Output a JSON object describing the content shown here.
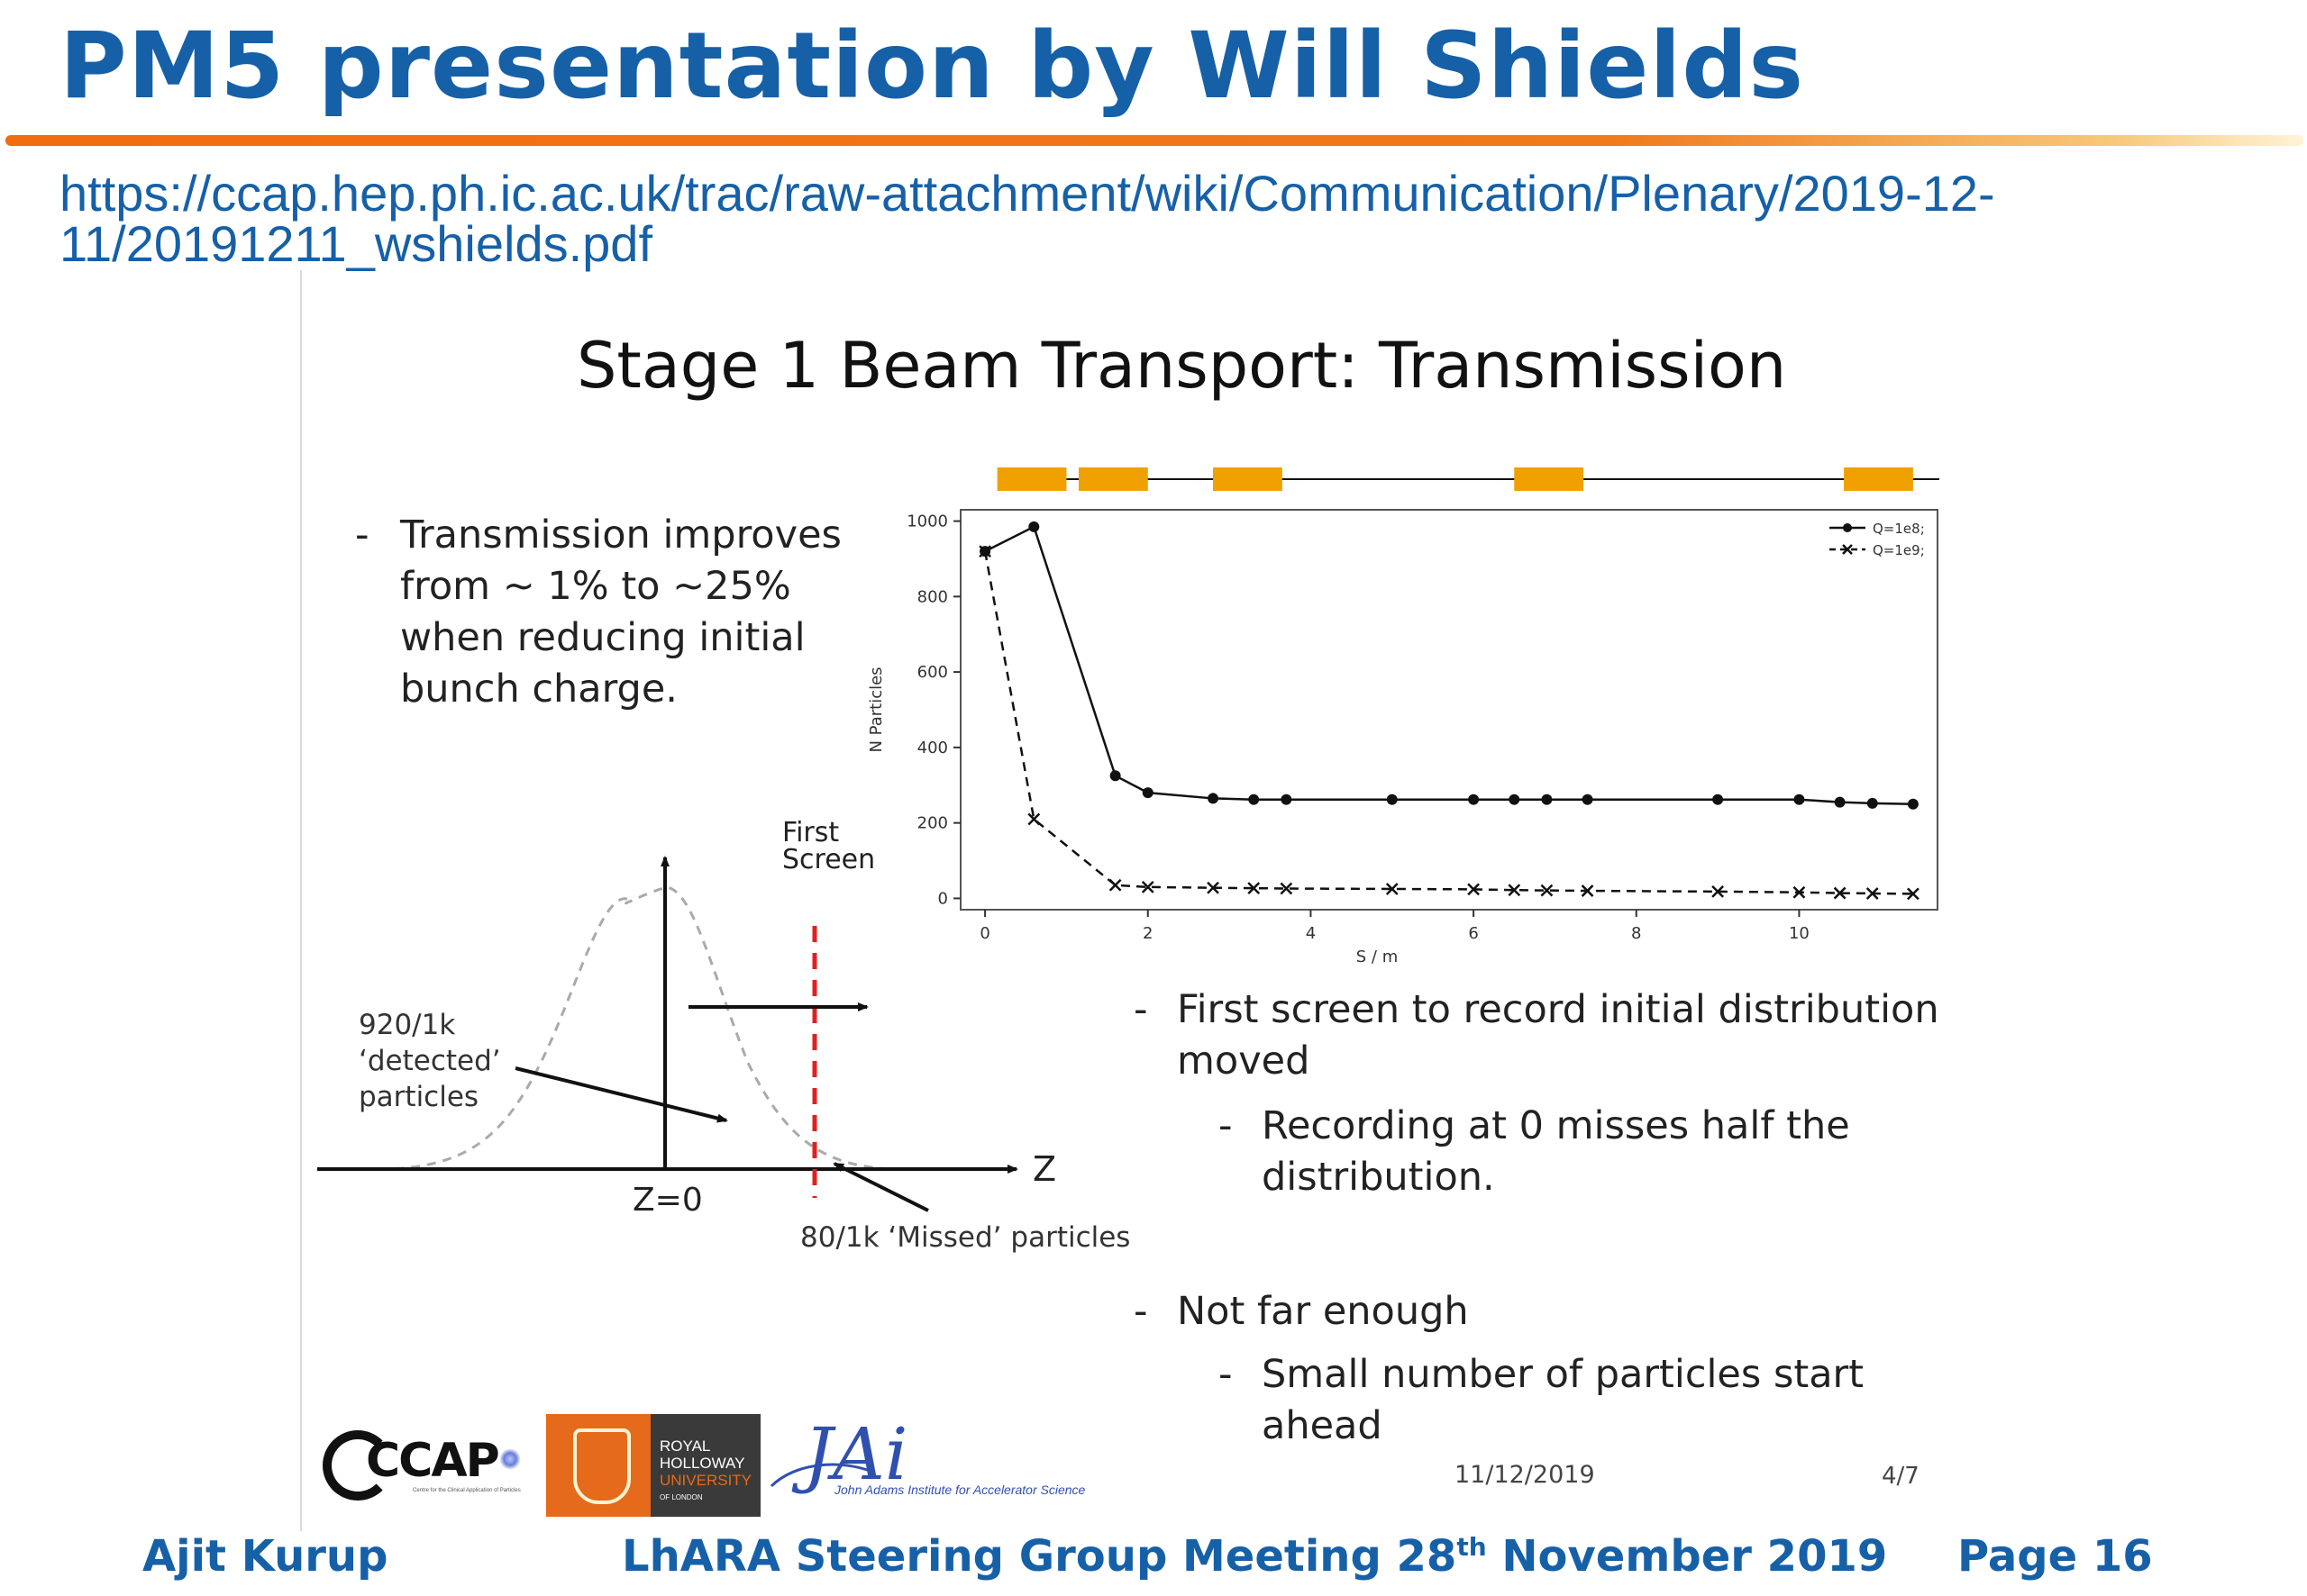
{
  "header": {
    "title": "PM5 presentation by Will Shields",
    "url_line1": "https://ccap.hep.ph.ic.ac.uk/trac/raw-attachment/wiki/Communication/Plenary/2019-12-",
    "url_line2": "11/20191211_wshields.pdf"
  },
  "slide": {
    "title": "Stage 1 Beam Transport: Transmission",
    "bullet1": {
      "lines": [
        "Transmission improves",
        "from ~ 1% to ~25%",
        "when reducing initial",
        "bunch charge."
      ]
    },
    "bullet2": {
      "lines": [
        "First screen to record initial distribution",
        "moved"
      ],
      "sub": [
        "Recording at 0 misses half the",
        "distribution."
      ]
    },
    "bullet3": {
      "lines": [
        "Not far enough"
      ],
      "sub": [
        "Small number of particles start",
        "ahead"
      ]
    },
    "dash": "-",
    "diagram": {
      "first_screen": [
        "First",
        "Screen"
      ],
      "detected": [
        "920/1k",
        "‘detected’",
        "particles"
      ],
      "z_axis": "Z",
      "z0": "Z=0",
      "missed": "80/1k ‘Missed’ particles"
    },
    "date": "11/12/2019",
    "slide_num": "4/7",
    "logos": {
      "ccap": "CCAP",
      "ccap_small": "Centre for the Clinical Application of Particles",
      "rhul": [
        "ROYAL",
        "HOLLOWAY",
        "UNIVERSITY",
        "OF LONDON"
      ],
      "jai": "JAi",
      "jai_sub": "John Adams Institute for Accelerator Science"
    }
  },
  "footer": {
    "author": "Ajit Kurup",
    "meeting_pre": "LhARA Steering Group Meeting 28",
    "meeting_sup": "th",
    "meeting_post": " November 2019",
    "page": "Page 16"
  },
  "colors": {
    "blue": "#1660a8",
    "orange": "#f26c10",
    "magnet": "#f0a000",
    "red_dash": "#e02020",
    "rhul_orange": "#e56a1b"
  },
  "chart_data": {
    "type": "line",
    "xlabel": "S / m",
    "ylabel": "N Particles",
    "xlim": [
      -0.3,
      11.7
    ],
    "ylim": [
      -30,
      1030
    ],
    "xticks": [
      0,
      2,
      4,
      6,
      8,
      10
    ],
    "yticks": [
      0,
      200,
      400,
      600,
      800,
      1000
    ],
    "legend_position": "top-right",
    "grid": false,
    "series": [
      {
        "name": "Q=1e8;",
        "marker": "circle",
        "line": "solid",
        "x": [
          0,
          0.6,
          1.6,
          2.0,
          2.8,
          3.3,
          3.7,
          5.0,
          6.0,
          6.5,
          6.9,
          7.4,
          9.0,
          10.0,
          10.5,
          10.9,
          11.4
        ],
        "y": [
          920,
          985,
          325,
          280,
          265,
          262,
          262,
          262,
          262,
          262,
          262,
          262,
          262,
          262,
          255,
          252,
          250
        ]
      },
      {
        "name": "Q=1e9;",
        "marker": "x",
        "line": "dashed",
        "x": [
          0,
          0.6,
          1.6,
          2.0,
          2.8,
          3.3,
          3.7,
          5.0,
          6.0,
          6.5,
          6.9,
          7.4,
          9.0,
          10.0,
          10.5,
          10.9,
          11.4
        ],
        "y": [
          920,
          210,
          35,
          30,
          28,
          27,
          26,
          25,
          24,
          22,
          21,
          20,
          18,
          16,
          14,
          13,
          12
        ]
      }
    ],
    "magnet_bar": {
      "segments_m": [
        [
          0.15,
          1.0
        ],
        [
          1.15,
          2.0
        ],
        [
          2.8,
          3.65
        ],
        [
          6.5,
          7.35
        ],
        [
          10.55,
          11.4
        ]
      ]
    }
  }
}
